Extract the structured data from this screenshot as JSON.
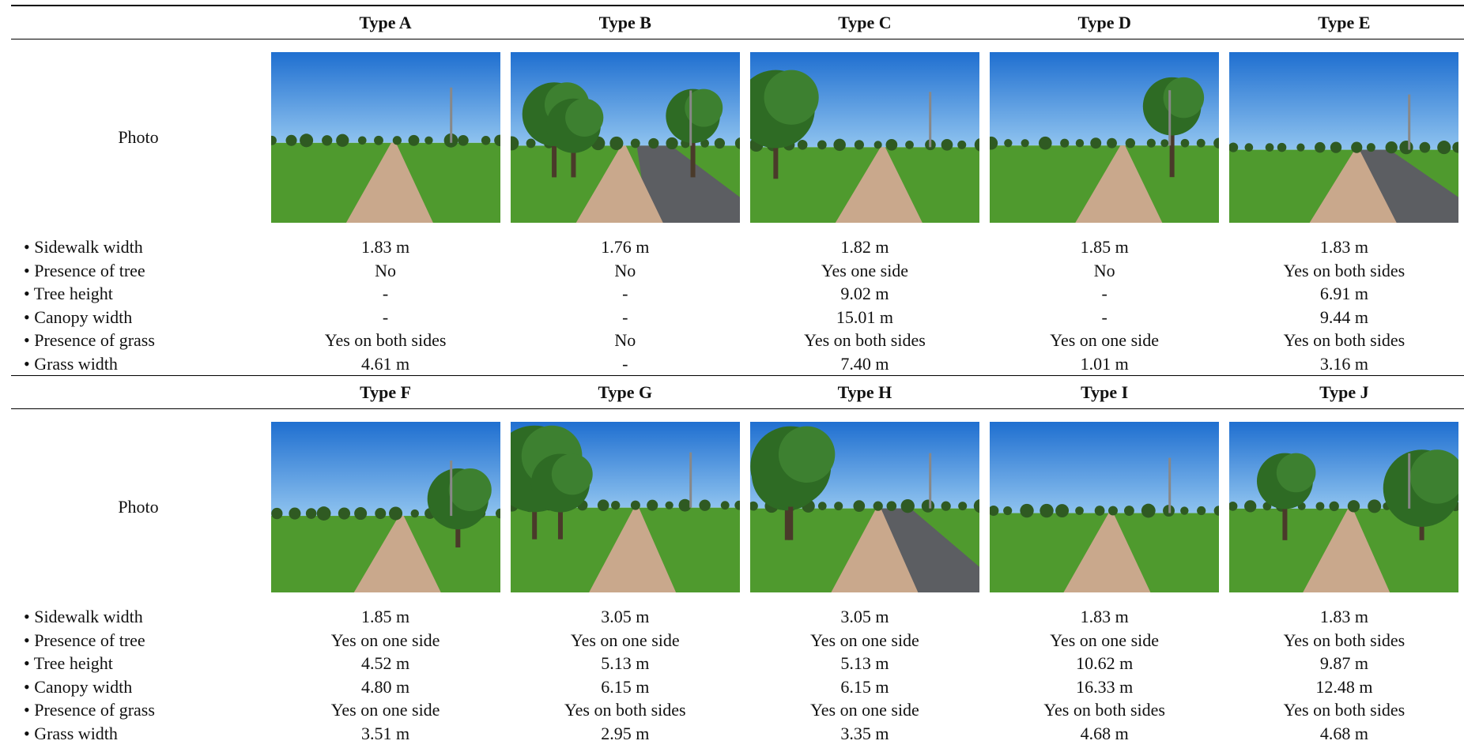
{
  "blocks": [
    {
      "headers": [
        "Type A",
        "Type B",
        "Type C",
        "Type D",
        "Type E"
      ],
      "photo_label": "Photo",
      "rows": [
        {
          "label": "• Sidewalk width",
          "cells": [
            "1.83 m",
            "1.76 m",
            "1.82 m",
            "1.85 m",
            "1.83 m"
          ]
        },
        {
          "label": "• Presence of tree",
          "cells": [
            "No",
            "No",
            "Yes one side",
            "No",
            "Yes on both sides"
          ]
        },
        {
          "label": "• Tree height",
          "cells": [
            "-",
            "-",
            "9.02 m",
            "-",
            "6.91 m"
          ]
        },
        {
          "label": "• Canopy width",
          "cells": [
            "-",
            "-",
            "15.01 m",
            "-",
            "9.44 m"
          ]
        },
        {
          "label": "• Presence of grass",
          "cells": [
            "Yes on both sides",
            "No",
            "Yes on both sides",
            "Yes on one side",
            "Yes on both sides"
          ]
        },
        {
          "label": "• Grass width",
          "cells": [
            "4.61 m",
            "-",
            "7.40 m",
            "1.01 m",
            "3.16 m"
          ]
        }
      ]
    },
    {
      "headers": [
        "Type F",
        "Type G",
        "Type H",
        "Type I",
        "Type J"
      ],
      "photo_label": "Photo",
      "rows": [
        {
          "label": "• Sidewalk width",
          "cells": [
            "1.85 m",
            "3.05 m",
            "3.05 m",
            "1.83 m",
            "1.83 m"
          ]
        },
        {
          "label": "• Presence of tree",
          "cells": [
            "Yes on one side",
            "Yes on one side",
            "Yes on one side",
            "Yes on one side",
            "Yes on both sides"
          ]
        },
        {
          "label": "• Tree height",
          "cells": [
            "4.52 m",
            "5.13 m",
            "5.13 m",
            "10.62 m",
            "9.87 m"
          ]
        },
        {
          "label": "• Canopy width",
          "cells": [
            "4.80 m",
            "6.15 m",
            "6.15 m",
            "16.33 m",
            "12.48 m"
          ]
        },
        {
          "label": "• Presence of grass",
          "cells": [
            "Yes on one side",
            "Yes on both sides",
            "Yes on one side",
            "Yes on both sides",
            "Yes on both sides"
          ]
        },
        {
          "label": "• Grass width",
          "cells": [
            "3.51 m",
            "2.95 m",
            "3.35 m",
            "4.68 m",
            "4.68 m"
          ]
        }
      ]
    }
  ]
}
